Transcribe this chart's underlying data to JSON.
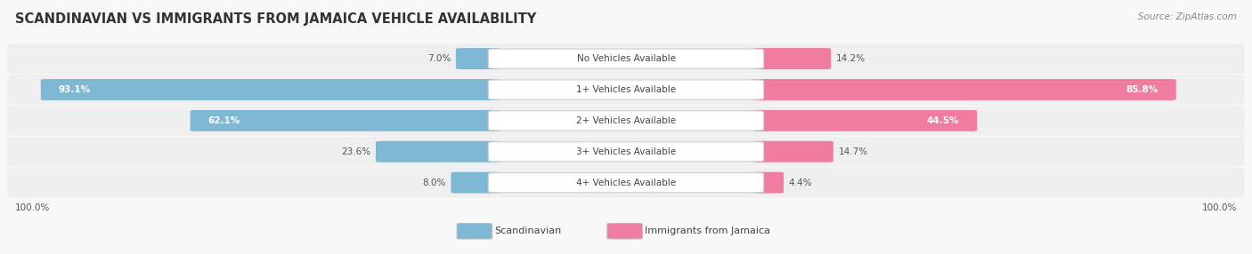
{
  "title": "SCANDINAVIAN VS IMMIGRANTS FROM JAMAICA VEHICLE AVAILABILITY",
  "source": "Source: ZipAtlas.com",
  "categories": [
    "No Vehicles Available",
    "1+ Vehicles Available",
    "2+ Vehicles Available",
    "3+ Vehicles Available",
    "4+ Vehicles Available"
  ],
  "scandinavian": [
    7.0,
    93.1,
    62.1,
    23.6,
    8.0
  ],
  "jamaica": [
    14.2,
    85.8,
    44.5,
    14.7,
    4.4
  ],
  "scand_color": "#7eb8d4",
  "jamaica_color": "#f07ca0",
  "row_bg": "#efefef",
  "label_color_dark": "#555555",
  "label_color_white": "#ffffff",
  "title_color": "#333333",
  "source_color": "#888888",
  "legend_scand": "Scandinavian",
  "legend_jamaica": "Immigrants from Jamaica",
  "max_value": 100.0,
  "figsize": [
    14.06,
    2.86
  ],
  "dpi": 100
}
